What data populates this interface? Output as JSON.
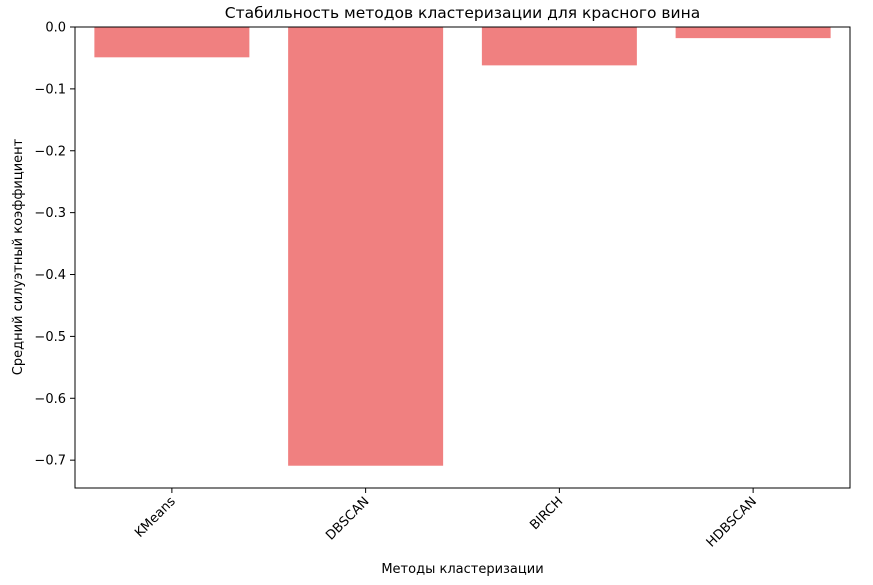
{
  "chart_data": {
    "type": "bar",
    "title": "Стабильность методов кластеризации для красного вина",
    "xlabel": "Методы кластеризации",
    "ylabel": "Средний силуэтный коэффициент",
    "categories": [
      "KMeans",
      "DBSCAN",
      "BIRCH",
      "HDBSCAN"
    ],
    "values": [
      -0.049,
      -0.709,
      -0.062,
      -0.018
    ],
    "ylim": [
      -0.745,
      0.0
    ],
    "yticks": [
      0.0,
      -0.1,
      -0.2,
      -0.3,
      -0.4,
      -0.5,
      -0.6,
      -0.7
    ],
    "ytick_labels": [
      "0.0",
      "−0.1",
      "−0.2",
      "−0.3",
      "−0.4",
      "−0.5",
      "−0.6",
      "−0.7"
    ],
    "xtick_rotation_deg": 45,
    "bar_color": "#f08080",
    "grid": false,
    "legend": "none"
  }
}
